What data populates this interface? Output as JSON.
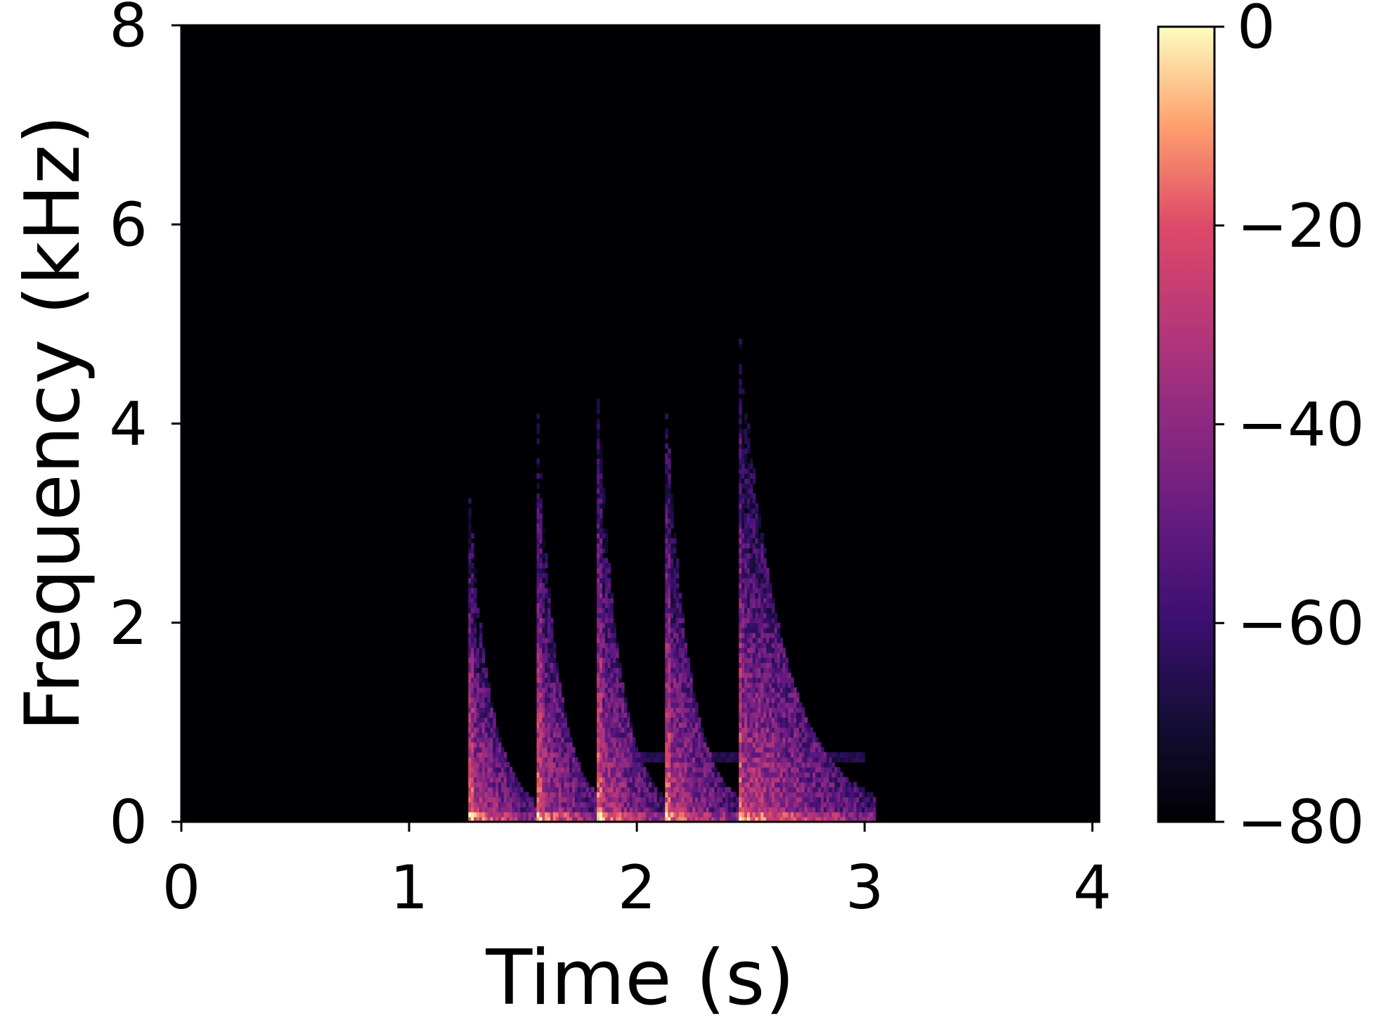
{
  "chart_data": {
    "type": "heatmap",
    "title": "",
    "xlabel": "Time (s)",
    "ylabel": "Frequency (kHz)",
    "xlim": [
      0,
      4.03
    ],
    "ylim": [
      0,
      8
    ],
    "x_ticks": [
      0,
      1,
      2,
      3,
      4
    ],
    "x_tick_labels": [
      "0",
      "1",
      "2",
      "3",
      "4"
    ],
    "y_ticks": [
      0,
      2,
      4,
      6,
      8
    ],
    "y_tick_labels": [
      "0",
      "2",
      "4",
      "6",
      "8"
    ],
    "colorbar": {
      "colormap": "magma",
      "range": [
        -80,
        0
      ],
      "ticks": [
        0,
        -20,
        -40,
        -60,
        -80
      ],
      "tick_labels": [
        "0",
        "−20",
        "−40",
        "−60",
        "−80"
      ]
    },
    "background_value": -80,
    "events": [
      {
        "onset": 1.26,
        "duration": 0.28,
        "max_freq": 3.2
      },
      {
        "onset": 1.56,
        "duration": 0.26,
        "max_freq": 4.0
      },
      {
        "onset": 1.82,
        "duration": 0.28,
        "max_freq": 4.4
      },
      {
        "onset": 2.12,
        "duration": 0.3,
        "max_freq": 4.3
      },
      {
        "onset": 2.44,
        "duration": 0.55,
        "max_freq": 5.0
      }
    ],
    "grid": false
  },
  "colors": {
    "background": "#ffffff",
    "plot_background": "#000004",
    "axis": "#000000"
  }
}
